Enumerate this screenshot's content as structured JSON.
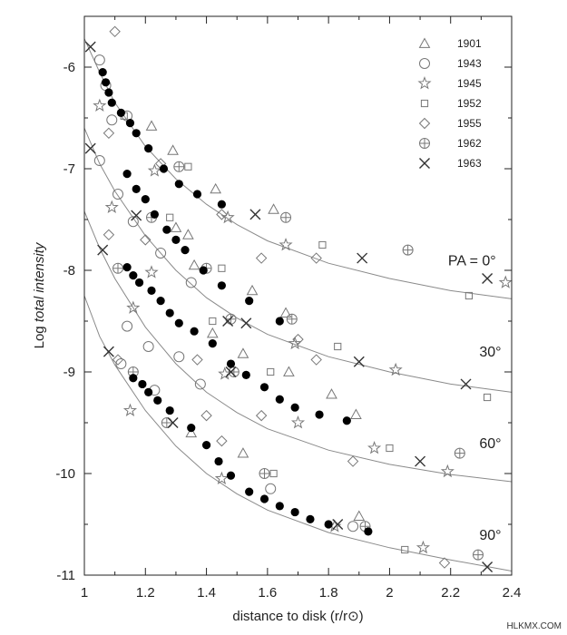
{
  "watermark": "HLKMX.COM",
  "chart_data": {
    "type": "scatter",
    "xlabel": "distance to disk (r/r⊙)",
    "ylabel_prefix": "Log ",
    "ylabel_italic": "total intensity",
    "xlim": [
      1.0,
      2.4
    ],
    "ylim": [
      -11.0,
      -5.5
    ],
    "x_ticks": [
      1,
      1.2,
      1.4,
      1.6,
      1.8,
      2,
      2.2,
      2.4
    ],
    "x_tick_labels": [
      "1",
      "1.2",
      "1.4",
      "1.6",
      "1.8",
      "2",
      "2.2",
      "2.4"
    ],
    "y_ticks": [
      -6,
      -7,
      -8,
      -9,
      -10,
      -11
    ],
    "y_tick_labels": [
      "-6",
      "-7",
      "-8",
      "-9",
      "-10",
      "-11"
    ],
    "grid": false,
    "legend_position": "top-right",
    "legend": [
      {
        "label": "1901",
        "marker": "triangle"
      },
      {
        "label": "1943",
        "marker": "circle"
      },
      {
        "label": "1945",
        "marker": "star"
      },
      {
        "label": "1952",
        "marker": "square"
      },
      {
        "label": "1955",
        "marker": "diamond"
      },
      {
        "label": "1962",
        "marker": "circle-plus"
      },
      {
        "label": "1963",
        "marker": "x"
      }
    ],
    "curves": [
      {
        "label": "PA = 0°",
        "points": [
          [
            1.0,
            -5.72
          ],
          [
            1.05,
            -6.05
          ],
          [
            1.1,
            -6.35
          ],
          [
            1.2,
            -6.78
          ],
          [
            1.3,
            -7.1
          ],
          [
            1.4,
            -7.35
          ],
          [
            1.5,
            -7.55
          ],
          [
            1.6,
            -7.71
          ],
          [
            1.8,
            -7.93
          ],
          [
            2.0,
            -8.08
          ],
          [
            2.2,
            -8.2
          ],
          [
            2.4,
            -8.28
          ]
        ]
      },
      {
        "label": "30°",
        "points": [
          [
            1.0,
            -6.6
          ],
          [
            1.05,
            -6.95
          ],
          [
            1.1,
            -7.22
          ],
          [
            1.2,
            -7.66
          ],
          [
            1.3,
            -8.0
          ],
          [
            1.4,
            -8.27
          ],
          [
            1.5,
            -8.47
          ],
          [
            1.6,
            -8.63
          ],
          [
            1.8,
            -8.85
          ],
          [
            2.0,
            -9.0
          ],
          [
            2.2,
            -9.12
          ],
          [
            2.4,
            -9.2
          ]
        ]
      },
      {
        "label": "60°",
        "points": [
          [
            1.0,
            -7.42
          ],
          [
            1.05,
            -7.78
          ],
          [
            1.1,
            -8.08
          ],
          [
            1.2,
            -8.56
          ],
          [
            1.3,
            -8.92
          ],
          [
            1.4,
            -9.2
          ],
          [
            1.5,
            -9.4
          ],
          [
            1.6,
            -9.56
          ],
          [
            1.8,
            -9.77
          ],
          [
            2.0,
            -9.91
          ],
          [
            2.2,
            -10.01
          ],
          [
            2.4,
            -10.08
          ]
        ]
      },
      {
        "label": "90°",
        "points": [
          [
            1.0,
            -8.25
          ],
          [
            1.05,
            -8.65
          ],
          [
            1.1,
            -8.93
          ],
          [
            1.2,
            -9.38
          ],
          [
            1.3,
            -9.73
          ],
          [
            1.4,
            -10.0
          ],
          [
            1.5,
            -10.2
          ],
          [
            1.6,
            -10.36
          ],
          [
            1.8,
            -10.58
          ],
          [
            2.0,
            -10.73
          ],
          [
            2.2,
            -10.85
          ],
          [
            2.4,
            -10.96
          ]
        ]
      }
    ],
    "curve_labels": [
      {
        "text": "PA = 0°",
        "x": 2.27,
        "y": -7.95
      },
      {
        "text": "30°",
        "x": 2.33,
        "y": -8.85
      },
      {
        "text": "60°",
        "x": 2.33,
        "y": -9.75
      },
      {
        "text": "90°",
        "x": 2.33,
        "y": -10.65
      }
    ],
    "series": [
      {
        "name": "1901",
        "marker": "triangle",
        "points": [
          [
            1.22,
            -6.58
          ],
          [
            1.29,
            -6.82
          ],
          [
            1.34,
            -7.65
          ],
          [
            1.43,
            -7.2
          ],
          [
            1.3,
            -7.58
          ],
          [
            1.36,
            -7.95
          ],
          [
            1.55,
            -8.2
          ],
          [
            1.62,
            -7.4
          ],
          [
            1.66,
            -8.42
          ],
          [
            1.42,
            -8.62
          ],
          [
            1.52,
            -8.82
          ],
          [
            1.67,
            -9.0
          ],
          [
            1.81,
            -9.22
          ],
          [
            1.89,
            -9.42
          ],
          [
            1.35,
            -9.6
          ],
          [
            1.52,
            -9.8
          ],
          [
            1.9,
            -10.42
          ]
        ]
      },
      {
        "name": "1943",
        "marker": "circle",
        "points": [
          [
            1.05,
            -5.93
          ],
          [
            1.07,
            -6.18
          ],
          [
            1.09,
            -6.52
          ],
          [
            1.14,
            -6.48
          ],
          [
            1.05,
            -6.92
          ],
          [
            1.11,
            -7.25
          ],
          [
            1.16,
            -7.52
          ],
          [
            1.25,
            -7.83
          ],
          [
            1.35,
            -8.12
          ],
          [
            1.14,
            -8.55
          ],
          [
            1.21,
            -8.75
          ],
          [
            1.31,
            -8.85
          ],
          [
            1.12,
            -8.92
          ],
          [
            1.23,
            -9.18
          ],
          [
            1.38,
            -9.12
          ],
          [
            1.61,
            -10.15
          ],
          [
            1.88,
            -10.52
          ]
        ]
      },
      {
        "name": "1945",
        "marker": "star",
        "points": [
          [
            1.05,
            -6.38
          ],
          [
            1.23,
            -7.02
          ],
          [
            1.47,
            -7.48
          ],
          [
            1.66,
            -7.75
          ],
          [
            1.22,
            -8.02
          ],
          [
            1.09,
            -7.38
          ],
          [
            1.69,
            -8.72
          ],
          [
            2.02,
            -8.98
          ],
          [
            2.38,
            -8.12
          ],
          [
            1.16,
            -8.37
          ],
          [
            1.46,
            -9.02
          ],
          [
            1.7,
            -9.5
          ],
          [
            1.95,
            -9.75
          ],
          [
            2.19,
            -9.98
          ],
          [
            1.15,
            -9.38
          ],
          [
            1.45,
            -10.05
          ],
          [
            1.82,
            -10.52
          ],
          [
            2.11,
            -10.73
          ]
        ]
      },
      {
        "name": "1952",
        "marker": "square",
        "points": [
          [
            1.13,
            -6.48
          ],
          [
            1.28,
            -7.48
          ],
          [
            1.34,
            -6.98
          ],
          [
            1.45,
            -7.98
          ],
          [
            1.78,
            -7.75
          ],
          [
            1.83,
            -8.75
          ],
          [
            2.26,
            -8.25
          ],
          [
            1.42,
            -8.5
          ],
          [
            1.61,
            -9.0
          ],
          [
            2.0,
            -9.75
          ],
          [
            2.32,
            -9.25
          ],
          [
            1.62,
            -10.0
          ],
          [
            2.05,
            -10.75
          ]
        ]
      },
      {
        "name": "1955",
        "marker": "diamond",
        "points": [
          [
            1.1,
            -5.65
          ],
          [
            1.08,
            -6.65
          ],
          [
            1.08,
            -7.65
          ],
          [
            1.2,
            -7.7
          ],
          [
            1.25,
            -6.95
          ],
          [
            1.45,
            -7.45
          ],
          [
            1.58,
            -7.88
          ],
          [
            1.7,
            -8.68
          ],
          [
            1.76,
            -7.88
          ],
          [
            1.37,
            -8.88
          ],
          [
            1.58,
            -9.43
          ],
          [
            1.76,
            -8.88
          ],
          [
            1.88,
            -9.88
          ],
          [
            1.11,
            -8.88
          ],
          [
            1.4,
            -9.43
          ],
          [
            1.45,
            -9.68
          ],
          [
            2.18,
            -10.88
          ]
        ]
      },
      {
        "name": "1962",
        "marker": "circle-plus",
        "points": [
          [
            1.31,
            -6.98
          ],
          [
            1.22,
            -7.48
          ],
          [
            1.4,
            -7.98
          ],
          [
            1.66,
            -7.48
          ],
          [
            1.11,
            -7.98
          ],
          [
            1.48,
            -8.48
          ],
          [
            1.68,
            -8.48
          ],
          [
            2.06,
            -7.8
          ],
          [
            1.16,
            -9.0
          ],
          [
            1.49,
            -9.0
          ],
          [
            1.27,
            -9.5
          ],
          [
            1.59,
            -10.0
          ],
          [
            2.23,
            -9.8
          ],
          [
            1.92,
            -10.52
          ],
          [
            2.29,
            -10.8
          ]
        ]
      },
      {
        "name": "1963",
        "marker": "x",
        "points": [
          [
            1.02,
            -5.8
          ],
          [
            1.17,
            -7.46
          ],
          [
            1.02,
            -6.8
          ],
          [
            1.56,
            -7.45
          ],
          [
            1.91,
            -7.88
          ],
          [
            2.32,
            -8.08
          ],
          [
            1.06,
            -7.8
          ],
          [
            1.47,
            -8.5
          ],
          [
            1.53,
            -8.52
          ],
          [
            1.9,
            -8.9
          ],
          [
            2.25,
            -9.12
          ],
          [
            1.08,
            -8.8
          ],
          [
            1.29,
            -9.5
          ],
          [
            1.48,
            -9.0
          ],
          [
            1.83,
            -10.5
          ],
          [
            2.1,
            -9.88
          ],
          [
            2.32,
            -10.92
          ]
        ]
      },
      {
        "name": "",
        "marker": "filled-circle",
        "points": [
          [
            1.06,
            -6.05
          ],
          [
            1.07,
            -6.15
          ],
          [
            1.08,
            -6.25
          ],
          [
            1.09,
            -6.35
          ],
          [
            1.12,
            -6.45
          ],
          [
            1.15,
            -6.55
          ],
          [
            1.17,
            -6.65
          ],
          [
            1.21,
            -6.8
          ],
          [
            1.26,
            -7.0
          ],
          [
            1.31,
            -7.15
          ],
          [
            1.37,
            -7.25
          ],
          [
            1.45,
            -7.35
          ],
          [
            1.14,
            -7.05
          ],
          [
            1.17,
            -7.2
          ],
          [
            1.2,
            -7.3
          ],
          [
            1.23,
            -7.45
          ],
          [
            1.27,
            -7.6
          ],
          [
            1.3,
            -7.7
          ],
          [
            1.33,
            -7.8
          ],
          [
            1.39,
            -8.0
          ],
          [
            1.45,
            -8.15
          ],
          [
            1.54,
            -8.3
          ],
          [
            1.64,
            -8.5
          ],
          [
            1.14,
            -7.97
          ],
          [
            1.16,
            -8.05
          ],
          [
            1.18,
            -8.12
          ],
          [
            1.22,
            -8.2
          ],
          [
            1.25,
            -8.3
          ],
          [
            1.28,
            -8.42
          ],
          [
            1.31,
            -8.52
          ],
          [
            1.36,
            -8.6
          ],
          [
            1.42,
            -8.72
          ],
          [
            1.48,
            -8.92
          ],
          [
            1.53,
            -9.03
          ],
          [
            1.59,
            -9.15
          ],
          [
            1.64,
            -9.27
          ],
          [
            1.69,
            -9.35
          ],
          [
            1.77,
            -9.42
          ],
          [
            1.86,
            -9.48
          ],
          [
            1.16,
            -9.06
          ],
          [
            1.19,
            -9.12
          ],
          [
            1.21,
            -9.2
          ],
          [
            1.24,
            -9.28
          ],
          [
            1.28,
            -9.38
          ],
          [
            1.35,
            -9.55
          ],
          [
            1.4,
            -9.72
          ],
          [
            1.44,
            -9.88
          ],
          [
            1.48,
            -10.02
          ],
          [
            1.54,
            -10.18
          ],
          [
            1.59,
            -10.25
          ],
          [
            1.64,
            -10.32
          ],
          [
            1.69,
            -10.38
          ],
          [
            1.74,
            -10.45
          ],
          [
            1.8,
            -10.5
          ],
          [
            1.93,
            -10.57
          ]
        ]
      }
    ]
  }
}
